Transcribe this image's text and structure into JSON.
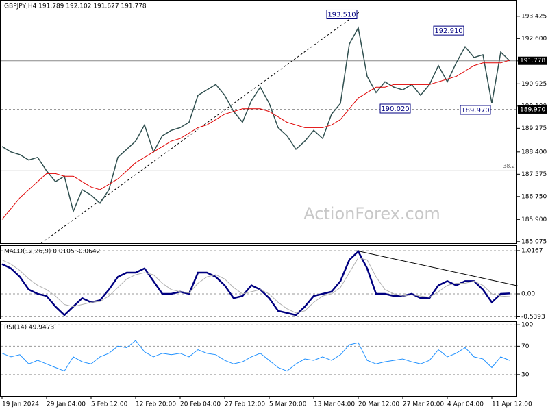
{
  "chart_data": [
    {
      "type": "line",
      "title": "GBPJPY,H4  191.789 192.102 191.627 191.778",
      "watermark": "ActionForex.com",
      "ylim": [
        185.02,
        194.03
      ],
      "yticks": [
        {
          "value": 193.425,
          "label": "193.425"
        },
        {
          "value": 192.6,
          "label": "192.600"
        },
        {
          "value": 191.775,
          "label": "191.775"
        },
        {
          "value": 190.925,
          "label": "190.925"
        },
        {
          "value": 190.1,
          "label": "190.100"
        },
        {
          "value": 189.275,
          "label": "189.275"
        },
        {
          "value": 188.4,
          "label": "188.400"
        },
        {
          "value": 187.575,
          "label": "187.575"
        },
        {
          "value": 186.75,
          "label": "186.750"
        },
        {
          "value": 185.9,
          "label": "185.900"
        },
        185.075
      ],
      "series": [
        {
          "name": "Close",
          "color": "#2f4f4f",
          "values": [
            188.6,
            188.4,
            188.3,
            188.1,
            188.2,
            187.7,
            187.3,
            187.5,
            186.2,
            187.0,
            186.8,
            186.5,
            187.0,
            188.2,
            188.5,
            188.8,
            189.4,
            188.4,
            189.0,
            189.2,
            189.3,
            189.5,
            190.5,
            190.7,
            190.9,
            190.5,
            189.9,
            189.5,
            190.3,
            190.8,
            190.2,
            189.3,
            189.0,
            188.5,
            188.8,
            189.2,
            188.9,
            189.8,
            190.2,
            192.4,
            193.0,
            191.2,
            190.6,
            191.0,
            190.8,
            190.7,
            190.9,
            190.5,
            190.9,
            191.6,
            191.0,
            191.7,
            192.3,
            191.9,
            192.0,
            190.2,
            192.1,
            191.778
          ]
        },
        {
          "name": "MA",
          "color": "#e00000",
          "values": [
            185.9,
            186.3,
            186.7,
            187.0,
            187.3,
            187.6,
            187.6,
            187.5,
            187.5,
            187.3,
            187.1,
            187.0,
            187.2,
            187.4,
            187.7,
            188.0,
            188.2,
            188.4,
            188.6,
            188.8,
            188.9,
            189.1,
            189.3,
            189.4,
            189.6,
            189.8,
            189.9,
            190.0,
            190.0,
            190.0,
            189.9,
            189.7,
            189.5,
            189.4,
            189.3,
            189.3,
            189.3,
            189.4,
            189.6,
            190.0,
            190.4,
            190.6,
            190.8,
            190.8,
            190.9,
            190.9,
            190.9,
            190.9,
            190.9,
            191.0,
            191.1,
            191.2,
            191.4,
            191.6,
            191.7,
            191.7,
            191.7,
            191.8
          ]
        }
      ],
      "annotations": [
        {
          "value": 193.51,
          "label": "193.510",
          "x": 40
        },
        {
          "value": 192.91,
          "label": "192.910",
          "x": 52
        },
        {
          "value": 190.02,
          "label": "190.020",
          "x": 46
        },
        {
          "value": 189.97,
          "label": "189.970",
          "x": 55
        }
      ],
      "hlines": [
        {
          "value": 191.778,
          "label": "191.778",
          "style": "solid"
        },
        {
          "value": 189.97,
          "label": "189.970",
          "style": "dashed"
        },
        {
          "value": 187.7,
          "fib": 38.2,
          "style": "solid"
        }
      ],
      "trendline": {
        "x": [
          4.4,
          40.2
        ],
        "y": [
          185.02,
          193.6
        ]
      }
    },
    {
      "type": "line",
      "title": "MACD(12,26,9) 0.0105 -0.0642",
      "ylim": [
        -0.597,
        1.145
      ],
      "yticks": [
        1.0167,
        {
          "value": 0,
          "label": "0.00"
        },
        -0.5393
      ],
      "series": [
        {
          "name": "MACD",
          "color": "#000080",
          "values": [
            0.7,
            0.6,
            0.4,
            0.1,
            0.0,
            -0.05,
            -0.3,
            -0.5,
            -0.3,
            -0.1,
            -0.2,
            -0.15,
            0.1,
            0.4,
            0.5,
            0.5,
            0.6,
            0.3,
            0.0,
            0.0,
            0.05,
            0.0,
            0.5,
            0.5,
            0.4,
            0.2,
            -0.1,
            -0.05,
            0.2,
            0.1,
            -0.1,
            -0.4,
            -0.45,
            -0.5,
            -0.3,
            -0.05,
            0.0,
            0.05,
            0.3,
            0.8,
            1.0,
            0.6,
            0.0,
            0.0,
            -0.05,
            -0.05,
            0.0,
            -0.1,
            -0.1,
            0.2,
            0.3,
            0.2,
            0.3,
            0.3,
            0.1,
            -0.2,
            0.0,
            0.0105
          ]
        },
        {
          "name": "Signal",
          "color": "#b0b0b0",
          "values": [
            0.8,
            0.7,
            0.55,
            0.35,
            0.2,
            0.1,
            -0.05,
            -0.25,
            -0.3,
            -0.25,
            -0.2,
            -0.18,
            -0.05,
            0.15,
            0.35,
            0.45,
            0.5,
            0.45,
            0.25,
            0.1,
            0.05,
            0.02,
            0.25,
            0.4,
            0.45,
            0.35,
            0.15,
            0.0,
            0.05,
            0.1,
            0.0,
            -0.2,
            -0.35,
            -0.45,
            -0.4,
            -0.2,
            -0.05,
            0.0,
            0.15,
            0.5,
            0.85,
            0.8,
            0.4,
            0.1,
            0.0,
            -0.05,
            -0.02,
            -0.05,
            -0.08,
            0.05,
            0.2,
            0.25,
            0.25,
            0.3,
            0.2,
            0.0,
            -0.05,
            -0.0642
          ]
        }
      ],
      "trendline": {
        "x": [
          39.8,
          57.9
        ],
        "y": [
          1.0167,
          0.19
        ]
      }
    },
    {
      "type": "line",
      "title": "RSI(14) 49.9473",
      "ylim": [
        0,
        105
      ],
      "yticks": [
        100,
        70,
        30
      ],
      "categories": [
        "19 Jan 2024",
        null,
        null,
        null,
        null,
        "29 Jan 04:00",
        null,
        null,
        null,
        null,
        "5 Feb 12:00",
        null,
        null,
        null,
        null,
        "12 Feb 20:00",
        null,
        null,
        null,
        null,
        "20 Feb 04:00",
        null,
        null,
        null,
        null,
        "27 Feb 12:00",
        null,
        null,
        null,
        null,
        "5 Mar 20:00",
        null,
        null,
        null,
        null,
        "13 Mar 04:00",
        null,
        null,
        null,
        null,
        "20 Mar 12:00",
        null,
        null,
        null,
        null,
        "27 Mar 20:00",
        null,
        null,
        null,
        null,
        "4 Apr 04:00",
        null,
        null,
        null,
        null,
        "11 Apr 12:00",
        null,
        null
      ],
      "series": [
        {
          "name": "RSI",
          "color": "#1e90ff",
          "values": [
            60,
            55,
            58,
            45,
            50,
            45,
            40,
            35,
            55,
            48,
            45,
            55,
            60,
            70,
            68,
            78,
            62,
            55,
            60,
            58,
            60,
            55,
            65,
            60,
            58,
            50,
            45,
            48,
            55,
            60,
            50,
            40,
            35,
            45,
            52,
            50,
            55,
            50,
            58,
            72,
            75,
            50,
            45,
            48,
            50,
            52,
            48,
            45,
            50,
            65,
            55,
            60,
            68,
            55,
            52,
            40,
            55,
            49.9473
          ]
        }
      ]
    }
  ]
}
